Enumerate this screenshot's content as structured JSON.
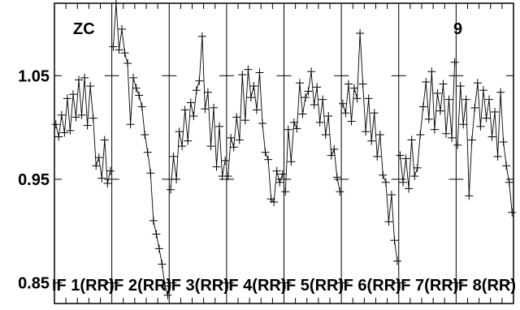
{
  "chart_data": {
    "type": "line",
    "title": "",
    "xlabel": "",
    "ylabel": "",
    "corner_labels": {
      "left": "ZC",
      "right": "9"
    },
    "ylim": [
      0.83,
      1.12
    ],
    "yticks": [
      0.85,
      0.95,
      1.05
    ],
    "ytick_labels": [
      "0.85",
      "0.95",
      "1.05"
    ],
    "panels": [
      {
        "name": "IF 1(RR)",
        "x": [
          1,
          2,
          3,
          4,
          5,
          6,
          7,
          8,
          9,
          10,
          11,
          12,
          13,
          14,
          15,
          16,
          17,
          18,
          19,
          20
        ],
        "y": [
          1.003,
          0.991,
          1.012,
          0.995,
          1.028,
          0.997,
          1.032,
          1.01,
          1.046,
          1.012,
          1.048,
          1.002,
          1.04,
          1.009,
          0.963,
          0.971,
          0.951,
          0.988,
          0.946,
          0.958
        ]
      },
      {
        "name": "IF 2(RR)",
        "x": [
          1,
          2,
          3,
          4,
          5,
          6,
          7,
          8,
          9,
          10,
          11,
          12,
          13,
          14,
          15,
          16,
          17,
          18,
          19,
          20
        ],
        "y": [
          1.078,
          1.12,
          1.075,
          1.095,
          1.072,
          1.062,
          1.003,
          1.048,
          1.038,
          1.031,
          1.02,
          0.993,
          0.976,
          0.956,
          0.91,
          0.897,
          0.883,
          0.868,
          0.847,
          0.838
        ]
      },
      {
        "name": "IF 3(RR)",
        "x": [
          1,
          2,
          3,
          4,
          5,
          6,
          7,
          8,
          9,
          10,
          11,
          12,
          13,
          14,
          15,
          16,
          17,
          18,
          19,
          20
        ],
        "y": [
          0.94,
          0.972,
          0.95,
          0.996,
          0.982,
          1.017,
          0.987,
          1.024,
          1.011,
          1.036,
          1.045,
          1.088,
          1.018,
          1.034,
          0.982,
          1.019,
          0.962,
          1.001,
          0.953,
          0.968
        ]
      },
      {
        "name": "IF 4(RR)",
        "x": [
          1,
          2,
          3,
          4,
          5,
          6,
          7,
          8,
          9,
          10,
          11,
          12,
          13,
          14,
          15,
          16,
          17,
          18,
          19,
          20
        ],
        "y": [
          0.953,
          0.99,
          0.981,
          1.01,
          0.988,
          1.051,
          1.007,
          1.056,
          1.029,
          1.04,
          1.017,
          1.053,
          1.004,
          0.976,
          0.969,
          0.931,
          0.928,
          0.958,
          0.947,
          0.955
        ]
      },
      {
        "name": "IF 5(RR)",
        "x": [
          1,
          2,
          3,
          4,
          5,
          6,
          7,
          8,
          9,
          10,
          11,
          12,
          13,
          14,
          15,
          16,
          17,
          18,
          19,
          20
        ],
        "y": [
          0.938,
          0.998,
          0.967,
          1.005,
          0.999,
          1.043,
          1.013,
          1.029,
          1.035,
          1.054,
          1.022,
          1.039,
          1.005,
          1.027,
          0.993,
          1.011,
          0.973,
          0.979,
          0.952,
          0.938
        ]
      },
      {
        "name": "IF 6(RR)",
        "x": [
          1,
          2,
          3,
          4,
          5,
          6,
          7,
          8,
          9,
          10,
          11,
          12,
          13,
          14,
          15,
          16,
          17,
          18,
          19,
          20
        ],
        "y": [
          1.023,
          1.014,
          1.042,
          1.006,
          1.038,
          1.028,
          1.091,
          1.042,
          0.996,
          1.028,
          0.987,
          1.014,
          0.972,
          0.993,
          0.954,
          0.947,
          0.909,
          0.935,
          0.891,
          0.871
        ]
      },
      {
        "name": "IF 7(RR)",
        "x": [
          1,
          2,
          3,
          4,
          5,
          6,
          7,
          8,
          9,
          10,
          11,
          12,
          13,
          14,
          15,
          16,
          17,
          18,
          19,
          20
        ],
        "y": [
          0.973,
          0.947,
          0.97,
          0.941,
          0.988,
          0.953,
          0.961,
          0.993,
          1.02,
          1.044,
          1.008,
          1.054,
          0.998,
          1.033,
          1.016,
          1.042,
          0.994,
          1.027,
          0.99,
          1.063
        ]
      },
      {
        "name": "IF 8(RR)",
        "x": [
          1,
          2,
          3,
          4,
          5,
          6,
          7,
          8,
          9,
          10,
          11,
          12,
          13,
          14,
          15,
          16,
          17,
          18,
          19,
          20
        ],
        "y": [
          0.983,
          1.04,
          1.003,
          1.027,
          0.934,
          0.988,
          1.019,
          1.043,
          1.001,
          1.036,
          1.009,
          1.027,
          0.991,
          1.015,
          0.972,
          1.034,
          0.986,
          0.963,
          0.947,
          0.918
        ]
      }
    ],
    "grid": false,
    "colors": {
      "line": "#000000",
      "axes": "#000000",
      "background": "#ffffff"
    }
  }
}
